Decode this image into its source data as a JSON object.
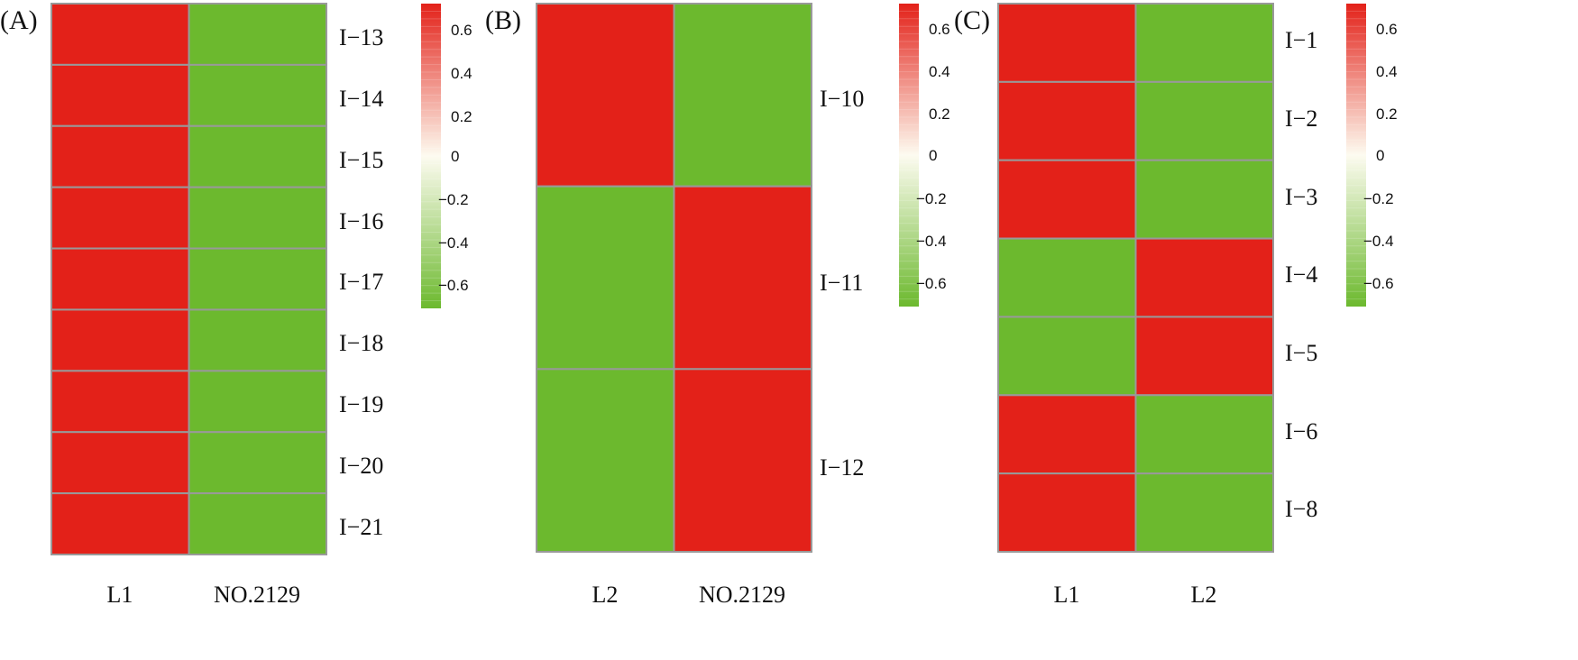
{
  "colors": {
    "high": "#e32119",
    "mid": "#fdfbf0",
    "low": "#6cb92e",
    "grid": "#999999"
  },
  "chart_data": [
    {
      "type": "heatmap",
      "panel_label": "(A)",
      "columns": [
        "L1",
        "NO.2129"
      ],
      "rows": [
        "I−13",
        "I−14",
        "I−15",
        "I−16",
        "I−17",
        "I−18",
        "I−19",
        "I−20",
        "I−21"
      ],
      "values": [
        [
          0.707,
          -0.707
        ],
        [
          0.707,
          -0.707
        ],
        [
          0.707,
          -0.707
        ],
        [
          0.707,
          -0.707
        ],
        [
          0.707,
          -0.707
        ],
        [
          0.707,
          -0.707
        ],
        [
          0.707,
          -0.707
        ],
        [
          0.707,
          -0.707
        ],
        [
          0.707,
          -0.707
        ]
      ],
      "colorbar": {
        "min": -0.707,
        "max": 0.707,
        "ticks": [
          0.6,
          0.4,
          0.2,
          0,
          -0.2,
          -0.4,
          -0.6
        ],
        "tick_labels": [
          "0.6",
          "0.4",
          "0.2",
          "0",
          "−0.2",
          "−0.4",
          "−0.6"
        ]
      }
    },
    {
      "type": "heatmap",
      "panel_label": "(B)",
      "columns": [
        "L2",
        "NO.2129"
      ],
      "rows": [
        "I−10",
        "I−11",
        "I−12"
      ],
      "values": [
        [
          0.707,
          -0.707
        ],
        [
          -0.707,
          0.707
        ],
        [
          -0.707,
          0.707
        ]
      ],
      "colorbar": {
        "min": -0.707,
        "max": 0.707,
        "ticks": [
          0.6,
          0.4,
          0.2,
          0,
          -0.2,
          -0.4,
          -0.6
        ],
        "tick_labels": [
          "0.6",
          "0.4",
          "0.2",
          "0",
          "−0.2",
          "−0.4",
          "−0.6"
        ]
      }
    },
    {
      "type": "heatmap",
      "panel_label": "(C)",
      "columns": [
        "L1",
        "L2"
      ],
      "rows": [
        "I−1",
        "I−2",
        "I−3",
        "I−4",
        "I−5",
        "I−6",
        "I−8"
      ],
      "values": [
        [
          0.707,
          -0.707
        ],
        [
          0.707,
          -0.707
        ],
        [
          0.707,
          -0.707
        ],
        [
          -0.707,
          0.707
        ],
        [
          -0.707,
          0.707
        ],
        [
          0.707,
          -0.707
        ],
        [
          0.707,
          -0.707
        ]
      ],
      "colorbar": {
        "min": -0.707,
        "max": 0.707,
        "ticks": [
          0.6,
          0.4,
          0.2,
          0,
          -0.2,
          -0.4,
          -0.6
        ],
        "tick_labels": [
          "0.6",
          "0.4",
          "0.2",
          "0",
          "−0.2",
          "−0.4",
          "−0.6"
        ]
      }
    }
  ]
}
